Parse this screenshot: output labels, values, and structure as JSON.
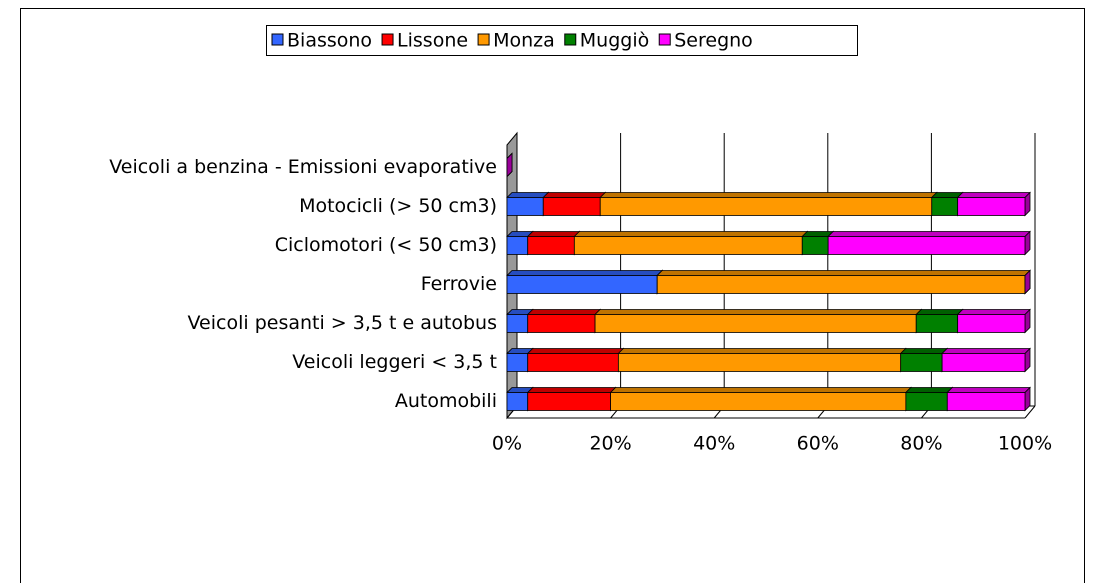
{
  "chart_data": {
    "type": "stacked-bar-horizontal",
    "categories": [
      "Veicoli a benzina - Emissioni evaporative",
      "Motocicli (> 50 cm3)",
      "Ciclomotori (< 50 cm3)",
      "Ferrovie",
      "Veicoli pesanti > 3,5 t e autobus",
      "Veicoli leggeri < 3,5 t",
      "Automobili"
    ],
    "series": [
      {
        "name": "Biassono",
        "color": "#3366ff",
        "values": [
          0,
          7,
          4,
          29,
          4,
          4,
          4
        ]
      },
      {
        "name": "Lissone",
        "color": "#ff0000",
        "values": [
          0,
          11,
          9,
          0,
          13,
          17.5,
          16
        ]
      },
      {
        "name": "Monza",
        "color": "#ff9900",
        "values": [
          0,
          64,
          44,
          71,
          62,
          54.5,
          57
        ]
      },
      {
        "name": "Muggiò",
        "color": "#008000",
        "values": [
          0,
          5,
          5,
          0,
          8,
          8,
          8
        ]
      },
      {
        "name": "Seregno",
        "color": "#ff00ff",
        "values": [
          0,
          13,
          38,
          0,
          13,
          16,
          15
        ]
      }
    ],
    "xlim": [
      0,
      100
    ],
    "xticks": [
      {
        "value": 0,
        "label": "0%"
      },
      {
        "value": 20,
        "label": "20%"
      },
      {
        "value": 40,
        "label": "40%"
      },
      {
        "value": 60,
        "label": "60%"
      },
      {
        "value": 80,
        "label": "80%"
      },
      {
        "value": 100,
        "label": "100%"
      }
    ],
    "grid": true,
    "legend": "top"
  }
}
